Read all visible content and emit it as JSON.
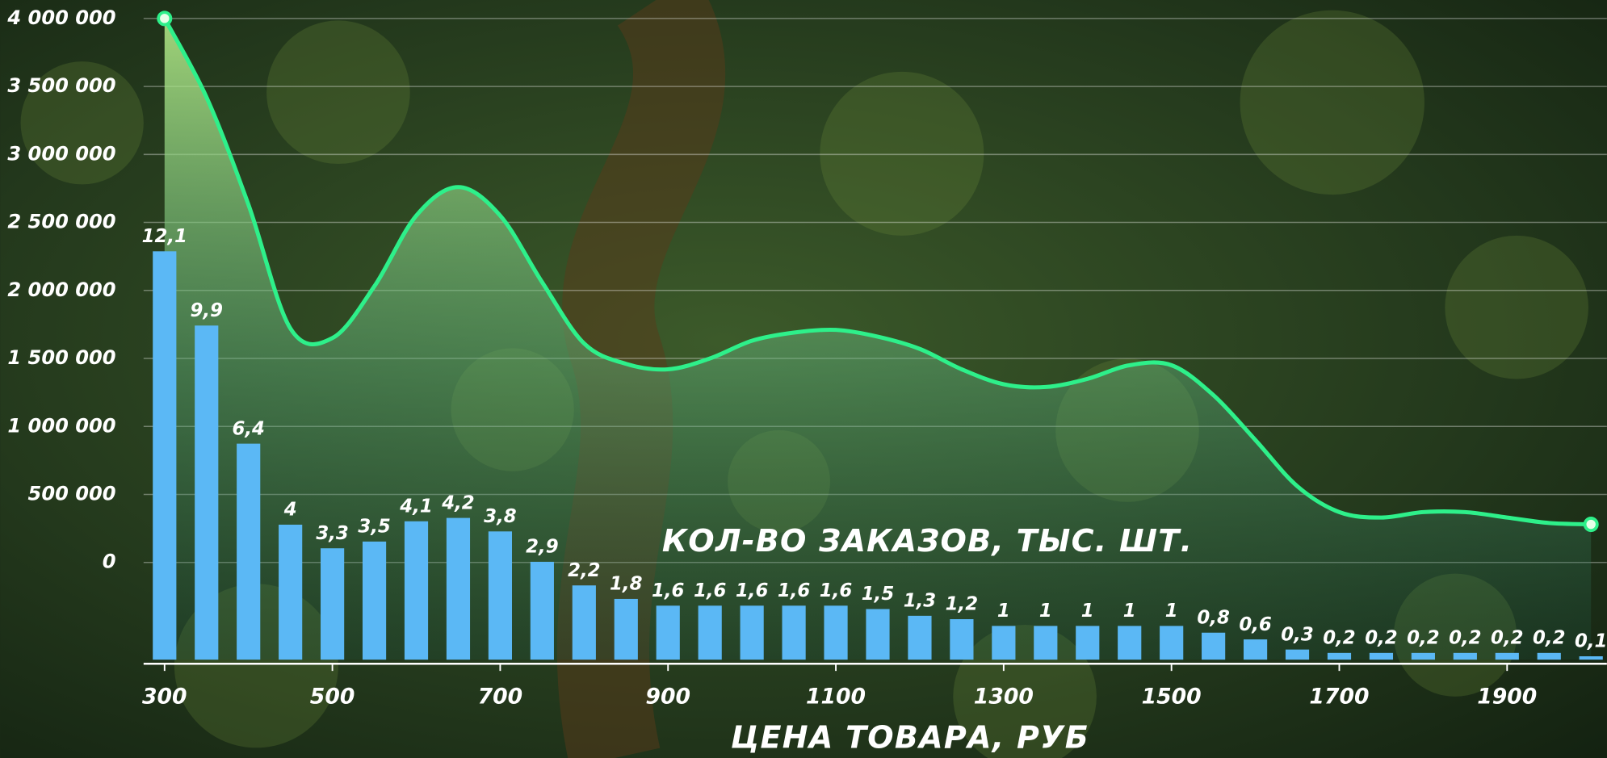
{
  "chart_data": {
    "type": "combo",
    "annotation": "КОЛ-ВО ЗАКАЗОВ, ТЫС. ШТ.",
    "x_label": "ЦЕНА ТОВАРА, РУБ",
    "x": [
      300,
      350,
      400,
      450,
      500,
      550,
      600,
      650,
      700,
      750,
      800,
      850,
      900,
      950,
      1000,
      1050,
      1100,
      1150,
      1200,
      1250,
      1300,
      1350,
      1400,
      1450,
      1500,
      1550,
      1600,
      1650,
      1700,
      1750,
      1800,
      1850,
      1900,
      1950,
      2000
    ],
    "xlim": [
      275,
      2025
    ],
    "xticks": [
      300,
      500,
      700,
      900,
      1100,
      1300,
      1500,
      1700,
      1900
    ],
    "ylim": [
      -715000,
      4000000
    ],
    "yticks": [
      0,
      {
        "value": 500000,
        "label": "500 000"
      },
      {
        "value": 1000000,
        "label": "1 000 000"
      },
      {
        "value": 1500000,
        "label": "1 500 000"
      },
      {
        "value": 2000000,
        "label": "2 000 000"
      },
      {
        "value": 2500000,
        "label": "2 500 000"
      },
      {
        "value": 3000000,
        "label": "3 000 000"
      },
      {
        "value": 3500000,
        "label": "3 500 000"
      },
      {
        "value": 4000000,
        "label": "4 000 000"
      }
    ],
    "y2lim": [
      0,
      19
    ],
    "grid": true,
    "series": [
      {
        "type": "area",
        "color": "#2ef08a",
        "values": [
          4000000,
          3420000,
          2630000,
          1720000,
          1650000,
          2030000,
          2550000,
          2760000,
          2550000,
          2060000,
          1610000,
          1460000,
          1420000,
          1500000,
          1630000,
          1690000,
          1710000,
          1660000,
          1570000,
          1420000,
          1310000,
          1290000,
          1350000,
          1450000,
          1450000,
          1230000,
          900000,
          560000,
          370000,
          330000,
          370000,
          370000,
          330000,
          290000,
          280000
        ]
      },
      {
        "type": "bar",
        "axis": "y2",
        "color": "#5bb8f5",
        "values": [
          12.1,
          9.9,
          6.4,
          4,
          3.3,
          3.5,
          4.1,
          4.2,
          3.8,
          2.9,
          2.2,
          1.8,
          1.6,
          1.6,
          1.6,
          1.6,
          1.6,
          1.5,
          1.3,
          1.2,
          1,
          1,
          1,
          1,
          1,
          0.8,
          0.6,
          0.3,
          0.2,
          0.2,
          0.2,
          0.2,
          0.2,
          0.2,
          0.1
        ],
        "value_labels": [
          "12,1",
          "9,9",
          "6,4",
          "4",
          "3,3",
          "3,5",
          "4,1",
          "4,2",
          "3,8",
          "2,9",
          "2,2",
          "1,8",
          "1,6",
          "1,6",
          "1,6",
          "1,6",
          "1,6",
          "1,5",
          "1,3",
          "1,2",
          "1",
          "1",
          "1",
          "1",
          "1",
          "0,8",
          "0,6",
          "0,3",
          "0,2",
          "0,2",
          "0,2",
          "0,2",
          "0,2",
          "0,2",
          "0,1"
        ]
      }
    ]
  }
}
